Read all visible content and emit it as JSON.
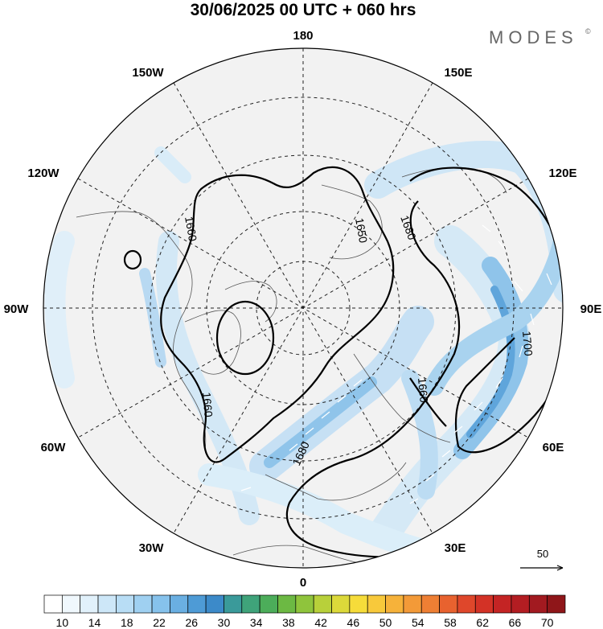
{
  "title": "30/06/2025  00 UTC  + 060 hrs",
  "brand": "MODES",
  "brand_mark": "©",
  "longitude_labels": [
    "180",
    "150E",
    "120E",
    "90E",
    "60E",
    "30E",
    "0",
    "30W",
    "60W",
    "90W",
    "120W",
    "150W"
  ],
  "contour_labels": [
    "1660",
    "1650",
    "1680",
    "1660",
    "1680",
    "1660",
    "1700"
  ],
  "vector_reference": "50",
  "colorbar": {
    "labels": [
      "10",
      "14",
      "18",
      "22",
      "26",
      "30",
      "34",
      "38",
      "42",
      "46",
      "50",
      "54",
      "58",
      "62",
      "66",
      "70"
    ],
    "colors": [
      "#ffffff",
      "#f0f8fd",
      "#e1f1fb",
      "#cde7f8",
      "#b8ddf5",
      "#9fd0f1",
      "#86c2ec",
      "#6aafe2",
      "#4e9bd6",
      "#3c8ac9",
      "#3a9a9a",
      "#3fa37a",
      "#4cad5a",
      "#6cb943",
      "#8fc43c",
      "#b8d03a",
      "#dcd93a",
      "#f6dc3a",
      "#f8c93b",
      "#f6b23a",
      "#f39a38",
      "#ee7f34",
      "#e8622f",
      "#df472b",
      "#d33226",
      "#c42424",
      "#b31d22",
      "#a21a20",
      "#8f1619"
    ]
  }
}
